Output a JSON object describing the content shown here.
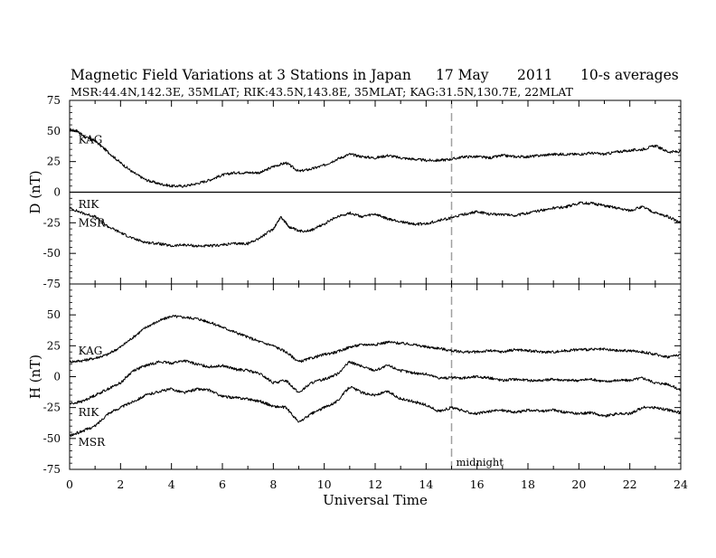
{
  "title_parts": [
    "Magnetic Field Variations at 3 Stations in Japan",
    "17 May",
    "2011",
    "10-s averages"
  ],
  "subtitle": "MSR:44.4N,142.3E, 35MLAT;  RIK:43.5N,143.8E, 35MLAT;  KAG:31.5N,130.7E, 22MLAT",
  "midnight_label": "midnight",
  "colors": {
    "trace": "#000000",
    "midnight_line": "#a0a0a0",
    "frame": "#000000"
  },
  "chart_data": [
    {
      "type": "line",
      "panel": "top",
      "ylabel": "D (nT)",
      "xlim": [
        0,
        24
      ],
      "ylim": [
        -75,
        75
      ],
      "yticks": [
        75,
        50,
        25,
        0,
        -25,
        -50,
        -75
      ],
      "hline": 0,
      "vline": 15,
      "series": [
        {
          "name": "KAG",
          "label_at": [
            0.2,
            43
          ],
          "x": [
            0,
            0.3,
            0.6,
            1,
            1.5,
            2,
            2.5,
            3,
            3.5,
            4,
            4.5,
            5,
            5.5,
            6,
            6.5,
            7,
            7.5,
            8,
            8.5,
            9,
            9.5,
            10,
            10.5,
            11,
            11.5,
            12,
            12.5,
            13,
            13.5,
            14,
            14.5,
            15,
            15.5,
            16,
            16.5,
            17,
            17.5,
            18,
            18.5,
            19,
            19.5,
            20,
            20.5,
            21,
            21.5,
            22,
            22.5,
            23,
            23.5,
            24
          ],
          "values": [
            51,
            50,
            45,
            42,
            33,
            24,
            16,
            10,
            7,
            5,
            5,
            7,
            10,
            14,
            16,
            16,
            16,
            21,
            24,
            17,
            19,
            22,
            27,
            31,
            29,
            28,
            30,
            28,
            27,
            26,
            26,
            27,
            29,
            29,
            28,
            30,
            29,
            29,
            30,
            31,
            31,
            31,
            32,
            31,
            33,
            34,
            35,
            38,
            33,
            33
          ]
        },
        {
          "name": "RIK",
          "label_at": [
            0.2,
            -10
          ],
          "x": [
            0,
            0.5,
            1,
            1.5,
            2,
            2.5,
            3,
            3.5,
            4,
            4.5,
            5,
            5.5,
            6,
            6.5,
            7,
            7.5,
            8,
            8.3,
            8.6,
            9,
            9.5,
            10,
            10.5,
            11,
            11.5,
            12,
            12.5,
            13,
            13.5,
            14,
            14.5,
            15,
            15.5,
            16,
            16.5,
            17,
            17.5,
            18,
            18.5,
            19,
            19.5,
            20,
            20.5,
            21,
            21.5,
            22,
            22.5,
            23,
            23.5,
            24
          ],
          "values": [
            -13,
            -17,
            -20,
            -28,
            -33,
            -38,
            -41,
            -42,
            -44,
            -43,
            -44,
            -44,
            -43,
            -42,
            -42,
            -37,
            -30,
            -20,
            -28,
            -32,
            -31,
            -26,
            -20,
            -17,
            -20,
            -18,
            -22,
            -24,
            -26,
            -26,
            -23,
            -21,
            -18,
            -16,
            -18,
            -18,
            -19,
            -17,
            -15,
            -13,
            -12,
            -9,
            -9,
            -11,
            -13,
            -15,
            -12,
            -17,
            -20,
            -25
          ]
        },
        {
          "name": "MSR",
          "label_at": [
            0.2,
            -25
          ],
          "x": [],
          "values": []
        }
      ]
    },
    {
      "type": "line",
      "panel": "bottom",
      "ylabel": "H (nT)",
      "xlabel": "Universal Time",
      "xlim": [
        0,
        24
      ],
      "ylim": [
        -75,
        75
      ],
      "xticks": [
        0,
        2,
        4,
        6,
        8,
        10,
        12,
        14,
        16,
        18,
        20,
        22,
        24
      ],
      "yticks": [
        50,
        25,
        0,
        -25,
        -50,
        -75
      ],
      "vline": 15,
      "series": [
        {
          "name": "KAG",
          "label_at": [
            0.2,
            21
          ],
          "x": [
            0,
            0.5,
            1,
            1.5,
            2,
            2.5,
            3,
            3.5,
            4,
            4.5,
            5,
            5.5,
            6,
            6.5,
            7,
            7.5,
            8,
            8.5,
            9,
            9.5,
            10,
            10.5,
            11,
            11.5,
            12,
            12.5,
            13,
            13.5,
            14,
            14.5,
            15,
            15.5,
            16,
            16.5,
            17,
            17.5,
            18,
            18.5,
            19,
            19.5,
            20,
            20.5,
            21,
            21.5,
            22,
            22.5,
            23,
            23.5,
            24
          ],
          "values": [
            12,
            13,
            15,
            18,
            24,
            32,
            40,
            45,
            49,
            48,
            47,
            44,
            40,
            36,
            32,
            28,
            25,
            20,
            12,
            15,
            18,
            20,
            24,
            26,
            26,
            28,
            27,
            26,
            24,
            23,
            21,
            20,
            20,
            21,
            20,
            22,
            21,
            20,
            20,
            21,
            22,
            22,
            22,
            21,
            21,
            20,
            18,
            16,
            18
          ]
        },
        {
          "name": "RIK",
          "label_at": [
            0.2,
            -29
          ],
          "x": [
            0,
            0.5,
            1,
            1.5,
            2,
            2.5,
            3,
            3.5,
            4,
            4.5,
            5,
            5.5,
            6,
            6.5,
            7,
            7.5,
            8,
            8.5,
            9,
            9.5,
            10,
            10.5,
            11,
            11.5,
            12,
            12.5,
            13,
            13.5,
            14,
            14.5,
            15,
            15.5,
            16,
            16.5,
            17,
            17.5,
            18,
            18.5,
            19,
            19.5,
            20,
            20.5,
            21,
            21.5,
            22,
            22.5,
            23,
            23.5,
            24
          ],
          "values": [
            -22,
            -20,
            -15,
            -10,
            -5,
            5,
            9,
            12,
            11,
            13,
            10,
            8,
            9,
            6,
            5,
            2,
            -5,
            -3,
            -13,
            -5,
            -2,
            2,
            12,
            8,
            5,
            9,
            5,
            3,
            2,
            -1,
            -1,
            -1,
            0,
            -1,
            -3,
            -2,
            -3,
            -3,
            -2,
            -3,
            -3,
            -2,
            -4,
            -3,
            -3,
            -1,
            -5,
            -6,
            -11
          ]
        },
        {
          "name": "MSR",
          "label_at": [
            0.2,
            -53
          ],
          "x": [
            0,
            0.5,
            1,
            1.5,
            2,
            2.5,
            3,
            3.5,
            4,
            4.5,
            5,
            5.5,
            6,
            6.5,
            7,
            7.5,
            8,
            8.5,
            9,
            9.5,
            10,
            10.5,
            11,
            11.5,
            12,
            12.5,
            13,
            13.5,
            14,
            14.5,
            15,
            15.5,
            16,
            16.5,
            17,
            17.5,
            18,
            18.5,
            19,
            19.5,
            20,
            20.5,
            21,
            21.5,
            22,
            22.5,
            23,
            23.5,
            24
          ],
          "values": [
            -48,
            -44,
            -40,
            -30,
            -25,
            -20,
            -15,
            -12,
            -10,
            -13,
            -10,
            -11,
            -16,
            -17,
            -18,
            -20,
            -24,
            -25,
            -37,
            -30,
            -25,
            -20,
            -8,
            -13,
            -15,
            -12,
            -18,
            -20,
            -23,
            -28,
            -25,
            -28,
            -30,
            -28,
            -27,
            -29,
            -27,
            -28,
            -27,
            -29,
            -30,
            -29,
            -32,
            -30,
            -30,
            -25,
            -25,
            -27,
            -29
          ]
        }
      ]
    }
  ]
}
